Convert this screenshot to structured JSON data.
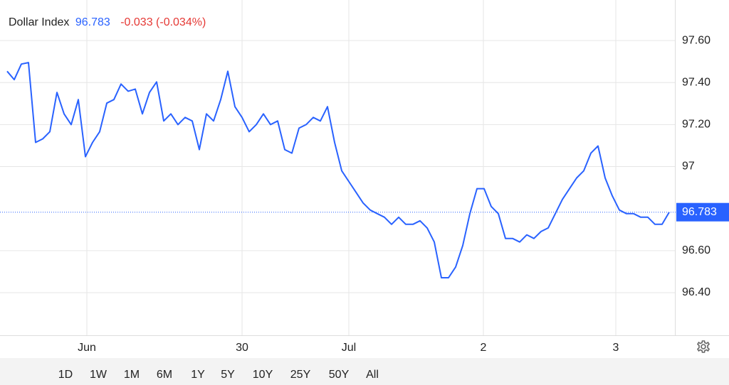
{
  "chart_data": {
    "type": "line",
    "name": "Dollar Index",
    "price": 96.783,
    "change": "-0.033 (-0.034%)",
    "x": [
      0,
      1,
      2,
      3,
      4,
      5,
      6,
      7,
      8,
      9,
      10,
      11,
      12,
      13,
      14,
      15,
      16,
      17,
      18,
      19,
      20,
      21,
      22,
      23,
      24,
      25,
      26,
      27,
      28,
      29,
      30,
      31,
      32,
      33,
      34,
      35,
      36,
      37,
      38,
      39,
      40,
      41,
      42,
      43,
      44,
      45,
      46,
      47,
      48,
      49,
      50,
      51,
      52,
      53,
      54,
      55,
      56,
      57,
      58,
      59,
      60,
      61,
      62,
      63,
      64,
      65,
      66,
      67,
      68,
      69,
      70,
      71,
      72,
      73,
      74,
      75,
      76,
      77,
      78,
      79,
      80,
      81,
      82,
      83,
      84,
      85,
      86,
      87,
      88,
      89,
      90,
      91,
      92,
      93
    ],
    "series": [
      {
        "name": "Dollar Index",
        "color": "#2962ff",
        "values": [
          97.454,
          97.414,
          97.488,
          97.495,
          97.115,
          97.132,
          97.166,
          97.353,
          97.251,
          97.2,
          97.319,
          97.047,
          97.115,
          97.166,
          97.302,
          97.319,
          97.393,
          97.359,
          97.369,
          97.251,
          97.353,
          97.403,
          97.217,
          97.251,
          97.2,
          97.234,
          97.217,
          97.081,
          97.251,
          97.217,
          97.319,
          97.454,
          97.285,
          97.234,
          97.166,
          97.2,
          97.251,
          97.2,
          97.217,
          97.081,
          97.064,
          97.183,
          97.2,
          97.234,
          97.217,
          97.285,
          97.115,
          96.98,
          96.929,
          96.878,
          96.827,
          96.793,
          96.776,
          96.759,
          96.725,
          96.759,
          96.725,
          96.725,
          96.742,
          96.708,
          96.641,
          96.471,
          96.471,
          96.522,
          96.624,
          96.776,
          96.895,
          96.895,
          96.81,
          96.776,
          96.658,
          96.658,
          96.641,
          96.675,
          96.658,
          96.691,
          96.708,
          96.776,
          96.844,
          96.895,
          96.946,
          96.98,
          97.064,
          97.098,
          96.946,
          96.861,
          96.793,
          96.776,
          96.776,
          96.759,
          96.759,
          96.725,
          96.725,
          96.783
        ]
      }
    ],
    "xlim": [
      0,
      93
    ],
    "xticks": [
      {
        "value": 11.2,
        "label": "Jun"
      },
      {
        "value": 33,
        "label": "30"
      },
      {
        "value": 48,
        "label": "Jul"
      },
      {
        "value": 66.9,
        "label": "2"
      },
      {
        "value": 85.5,
        "label": "3"
      }
    ],
    "ylim": [
      96.197,
      97.793
    ],
    "yticks": [
      {
        "value": 96.4,
        "label": "96.40"
      },
      {
        "value": 96.6,
        "label": "96.60"
      },
      97,
      {
        "value": 97.2,
        "label": "97.20"
      },
      {
        "value": 97.4,
        "label": "97.40"
      },
      {
        "value": 97.6,
        "label": "97.60"
      }
    ],
    "grid": true,
    "ranges": [
      "1D",
      "1W",
      "1M",
      "6M",
      "1Y",
      "5Y",
      "10Y",
      "25Y",
      "50Y",
      "All"
    ]
  }
}
